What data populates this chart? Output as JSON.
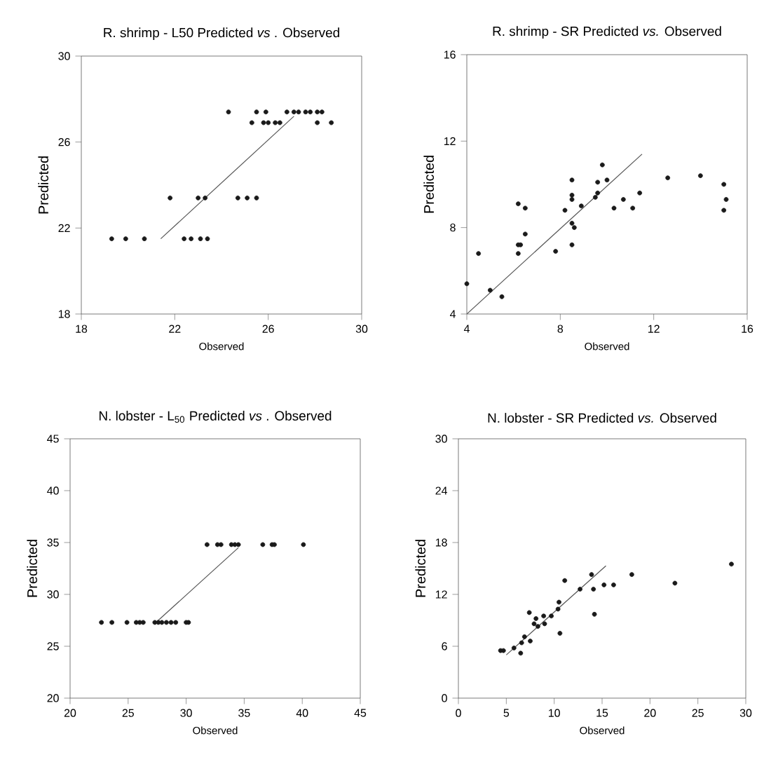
{
  "chart_data": [
    {
      "type": "scatter",
      "title": "R. shrimp - L50 Predicted *vs* . Observed",
      "xlabel": "Observed",
      "ylabel": "Predicted",
      "xlim": [
        18,
        30
      ],
      "ylim": [
        18,
        30
      ],
      "xticks": [
        18,
        22,
        26,
        30
      ],
      "yticks": [
        18,
        22,
        26,
        30
      ],
      "marker": "circle",
      "series": [
        {
          "color": "#1a1a1a",
          "x": [
            19.3,
            19.9,
            20.7,
            22.4,
            22.7,
            23.1,
            23.4,
            21.8,
            23.0,
            23.3,
            24.7,
            25.1,
            25.5,
            24.3,
            25.5,
            25.9,
            26.8,
            27.1,
            27.3,
            27.6,
            27.8,
            28.1,
            28.3,
            25.3,
            25.8,
            26.0,
            26.3,
            26.5,
            28.1,
            28.7
          ],
          "values": [
            21.5,
            21.5,
            21.5,
            21.5,
            21.5,
            21.5,
            21.5,
            23.4,
            23.4,
            23.4,
            23.4,
            23.4,
            23.4,
            27.4,
            27.4,
            27.4,
            27.4,
            27.4,
            27.4,
            27.4,
            27.4,
            27.4,
            27.4,
            26.9,
            26.9,
            26.9,
            26.9,
            26.9,
            26.9,
            26.9
          ]
        },
        {
          "type": "line",
          "marker": "none",
          "color": "#555555",
          "x": [
            21.4,
            27.1
          ],
          "values": [
            21.5,
            27.2
          ]
        }
      ]
    },
    {
      "type": "scatter",
      "title": "R. shrimp - SR Predicted *vs.* Observed",
      "xlabel": "Observed",
      "ylabel": "Predicted",
      "xlim": [
        4,
        16
      ],
      "ylim": [
        4,
        16
      ],
      "xticks": [
        4,
        8,
        12,
        16
      ],
      "yticks": [
        4,
        8,
        12,
        16
      ],
      "marker": "circle",
      "series": [
        {
          "color": "#1a1a1a",
          "x": [
            4.0,
            4.5,
            5.0,
            5.5,
            6.2,
            6.2,
            6.2,
            6.3,
            6.5,
            6.5,
            7.8,
            8.2,
            8.5,
            8.5,
            8.5,
            8.5,
            8.5,
            8.6,
            8.9,
            9.5,
            9.6,
            9.6,
            9.8,
            10.0,
            10.3,
            10.7,
            11.1,
            11.4,
            12.6,
            14.0,
            15.0,
            15.0,
            15.1
          ],
          "values": [
            5.4,
            6.8,
            5.1,
            4.8,
            9.1,
            6.8,
            7.2,
            7.2,
            8.9,
            7.7,
            6.9,
            8.8,
            10.2,
            9.5,
            9.3,
            7.2,
            8.2,
            8.0,
            9.0,
            9.4,
            9.6,
            10.1,
            10.9,
            10.2,
            8.9,
            9.3,
            8.9,
            9.6,
            10.3,
            10.4,
            8.8,
            10.0,
            9.3
          ]
        },
        {
          "type": "line",
          "marker": "none",
          "color": "#555555",
          "x": [
            4,
            11.5
          ],
          "values": [
            4,
            11.4
          ]
        }
      ]
    },
    {
      "type": "scatter",
      "title": "N. lobster - L$_{50}$ Predicted *vs* . Observed",
      "xlabel": "Observed",
      "ylabel": "Predicted",
      "xlim": [
        20,
        45
      ],
      "ylim": [
        20,
        45
      ],
      "xticks": [
        20,
        25,
        30,
        35,
        40,
        45
      ],
      "yticks": [
        20,
        25,
        30,
        35,
        40,
        45
      ],
      "marker": "circle",
      "series": [
        {
          "color": "#1a1a1a",
          "x": [
            22.7,
            23.6,
            24.9,
            25.7,
            26.0,
            26.3,
            27.3,
            27.6,
            27.9,
            28.3,
            28.7,
            29.1,
            30.0,
            30.2,
            31.8,
            32.7,
            33.0,
            33.9,
            34.2,
            34.5,
            36.6,
            37.4,
            37.6,
            40.1
          ],
          "values": [
            27.3,
            27.3,
            27.3,
            27.3,
            27.3,
            27.3,
            27.3,
            27.3,
            27.3,
            27.3,
            27.3,
            27.3,
            27.3,
            27.3,
            34.8,
            34.8,
            34.8,
            34.8,
            34.8,
            34.8,
            34.8,
            34.8,
            34.8,
            34.8
          ]
        },
        {
          "type": "line",
          "marker": "none",
          "color": "#555555",
          "x": [
            27.4,
            34.5
          ],
          "values": [
            27.3,
            34.5
          ]
        }
      ]
    },
    {
      "type": "scatter",
      "title": "N. lobster - SR Predicted *vs.* Observed",
      "xlabel": "Observed",
      "ylabel": "Predicted",
      "xlim": [
        0,
        30
      ],
      "ylim": [
        0,
        30
      ],
      "xticks": [
        0,
        5,
        10,
        15,
        20,
        25,
        30
      ],
      "yticks": [
        0,
        6,
        12,
        18,
        24,
        30
      ],
      "marker": "circle",
      "series": [
        {
          "color": "#1a1a1a",
          "x": [
            4.4,
            4.7,
            5.8,
            6.5,
            6.6,
            6.9,
            7.4,
            7.5,
            7.9,
            8.1,
            8.3,
            8.9,
            9.0,
            9.7,
            10.4,
            10.5,
            10.6,
            11.1,
            12.7,
            13.9,
            14.1,
            14.2,
            15.2,
            16.2,
            18.1,
            22.6,
            28.5
          ],
          "values": [
            5.5,
            5.5,
            5.8,
            5.2,
            6.4,
            7.1,
            9.9,
            6.6,
            8.6,
            9.2,
            8.3,
            9.5,
            8.6,
            9.5,
            10.3,
            11.1,
            7.5,
            13.6,
            12.6,
            14.3,
            12.6,
            9.7,
            13.1,
            13.1,
            14.3,
            13.3,
            15.5
          ]
        },
        {
          "type": "line",
          "marker": "none",
          "color": "#555555",
          "x": [
            5,
            15.4
          ],
          "values": [
            5,
            15.3
          ]
        }
      ]
    }
  ]
}
